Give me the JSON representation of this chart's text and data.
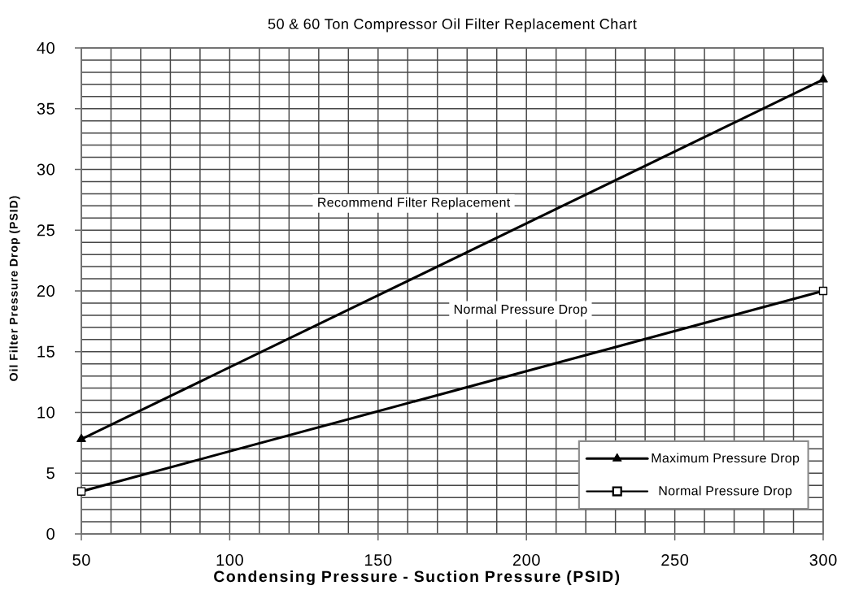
{
  "chart_data": {
    "type": "line",
    "title": "50 & 60 Ton Compressor Oil Filter Replacement Chart",
    "xlabel": "Condensing Pressure - Suction Pressure (PSID)",
    "ylabel": "Oil Filter Pressure Drop (PSID)",
    "x": [
      50,
      300
    ],
    "series": [
      {
        "name": "Maximum Pressure Drop",
        "color": "#000000",
        "values": [
          7.8,
          37.4
        ],
        "marker": "triangle"
      },
      {
        "name": "Normal Pressure Drop",
        "color": "#000000",
        "values": [
          3.5,
          20.0
        ],
        "marker": "square"
      }
    ],
    "xlim": [
      50,
      300
    ],
    "ylim": [
      0,
      40
    ],
    "xticks": [
      50,
      {
        "value": 60,
        "label": null
      },
      {
        "value": 70,
        "label": null
      },
      {
        "value": 80,
        "label": null
      },
      {
        "value": 90,
        "label": null
      },
      100,
      {
        "value": 110,
        "label": null
      },
      {
        "value": 120,
        "label": null
      },
      {
        "value": 130,
        "label": null
      },
      {
        "value": 140,
        "label": null
      },
      150,
      {
        "value": 160,
        "label": null
      },
      {
        "value": 170,
        "label": null
      },
      {
        "value": 180,
        "label": null
      },
      {
        "value": 190,
        "label": null
      },
      200,
      {
        "value": 210,
        "label": null
      },
      {
        "value": 220,
        "label": null
      },
      {
        "value": 230,
        "label": null
      },
      {
        "value": 240,
        "label": null
      },
      250,
      {
        "value": 260,
        "label": null
      },
      {
        "value": 270,
        "label": null
      },
      {
        "value": 280,
        "label": null
      },
      {
        "value": 290,
        "label": null
      },
      300
    ],
    "yticks": [
      0,
      {
        "value": 1,
        "label": null
      },
      {
        "value": 2,
        "label": null
      },
      {
        "value": 3,
        "label": null
      },
      {
        "value": 4,
        "label": null
      },
      5,
      {
        "value": 6,
        "label": null
      },
      {
        "value": 7,
        "label": null
      },
      {
        "value": 8,
        "label": null
      },
      {
        "value": 9,
        "label": null
      },
      10,
      {
        "value": 11,
        "label": null
      },
      {
        "value": 12,
        "label": null
      },
      {
        "value": 13,
        "label": null
      },
      {
        "value": 14,
        "label": null
      },
      15,
      {
        "value": 16,
        "label": null
      },
      {
        "value": 17,
        "label": null
      },
      {
        "value": 18,
        "label": null
      },
      {
        "value": 19,
        "label": null
      },
      20,
      {
        "value": 21,
        "label": null
      },
      {
        "value": 22,
        "label": null
      },
      {
        "value": 23,
        "label": null
      },
      {
        "value": 24,
        "label": null
      },
      25,
      {
        "value": 26,
        "label": null
      },
      {
        "value": 27,
        "label": null
      },
      {
        "value": 28,
        "label": null
      },
      {
        "value": 29,
        "label": null
      },
      30,
      {
        "value": 31,
        "label": null
      },
      {
        "value": 32,
        "label": null
      },
      {
        "value": 33,
        "label": null
      },
      {
        "value": 34,
        "label": null
      },
      35,
      {
        "value": 36,
        "label": null
      },
      {
        "value": 37,
        "label": null
      },
      {
        "value": 38,
        "label": null
      },
      {
        "value": 39,
        "label": null
      },
      40
    ],
    "grid": true,
    "legend": "bottom right",
    "line_style": "solid",
    "annotations": [
      "Recommend Filter Replacement",
      "Normal Pressure Drop"
    ]
  }
}
